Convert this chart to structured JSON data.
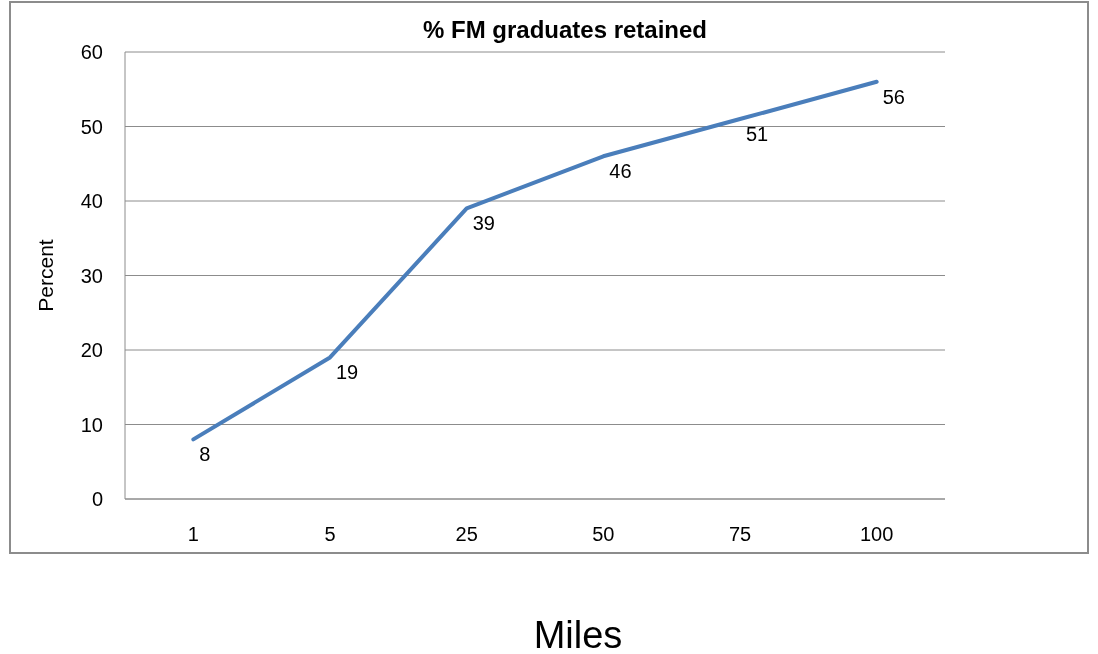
{
  "chart_data": {
    "type": "line",
    "title": "% FM graduates retained",
    "xlabel": "Miles",
    "ylabel": "Percent",
    "categories": [
      "1",
      "5",
      "25",
      "50",
      "75",
      "100"
    ],
    "series": [
      {
        "color": "#4a7ebb",
        "values": [
          8,
          19,
          39,
          46,
          51,
          56
        ]
      }
    ],
    "ylim": [
      0,
      60
    ],
    "yticks": [
      0,
      10,
      20,
      30,
      40,
      50,
      60
    ],
    "grid": "y",
    "data_labels": true,
    "marker": "none",
    "line_style": "solid"
  }
}
